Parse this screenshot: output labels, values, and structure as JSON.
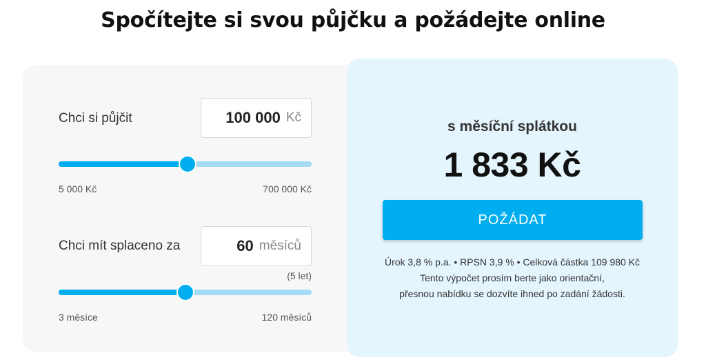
{
  "title": "Spočítejte si svou půjčku a požádejte online",
  "amount": {
    "label": "Chci si půjčit",
    "value": "100 000",
    "unit": "Kč",
    "min_label": "5 000 Kč",
    "max_label": "700 000 Kč",
    "slider_position_percent": 51
  },
  "term": {
    "label": "Chci mít splaceno za",
    "value": "60",
    "unit": "měsíců",
    "hint": "(5 let)",
    "min_label": "3 měsíce",
    "max_label": "120 měsíců",
    "slider_position_percent": 50
  },
  "result": {
    "label": "s měsíční splátkou",
    "value": "1 833 Kč",
    "button_label": "POŽÁDAT",
    "info_line1": "Úrok 3,8 % p.a. • RPSN 3,9 % • Celková částka 109 980 Kč",
    "info_line2": "Tento výpočet prosím berte jako orientační,",
    "info_line3": "přesnou nabídku se dozvíte ihned po zadání žádosti."
  },
  "colors": {
    "accent": "#00aeef",
    "track": "#a4dcf5",
    "result_panel": "#e5f5fd",
    "form_panel": "#f7f7f7"
  }
}
